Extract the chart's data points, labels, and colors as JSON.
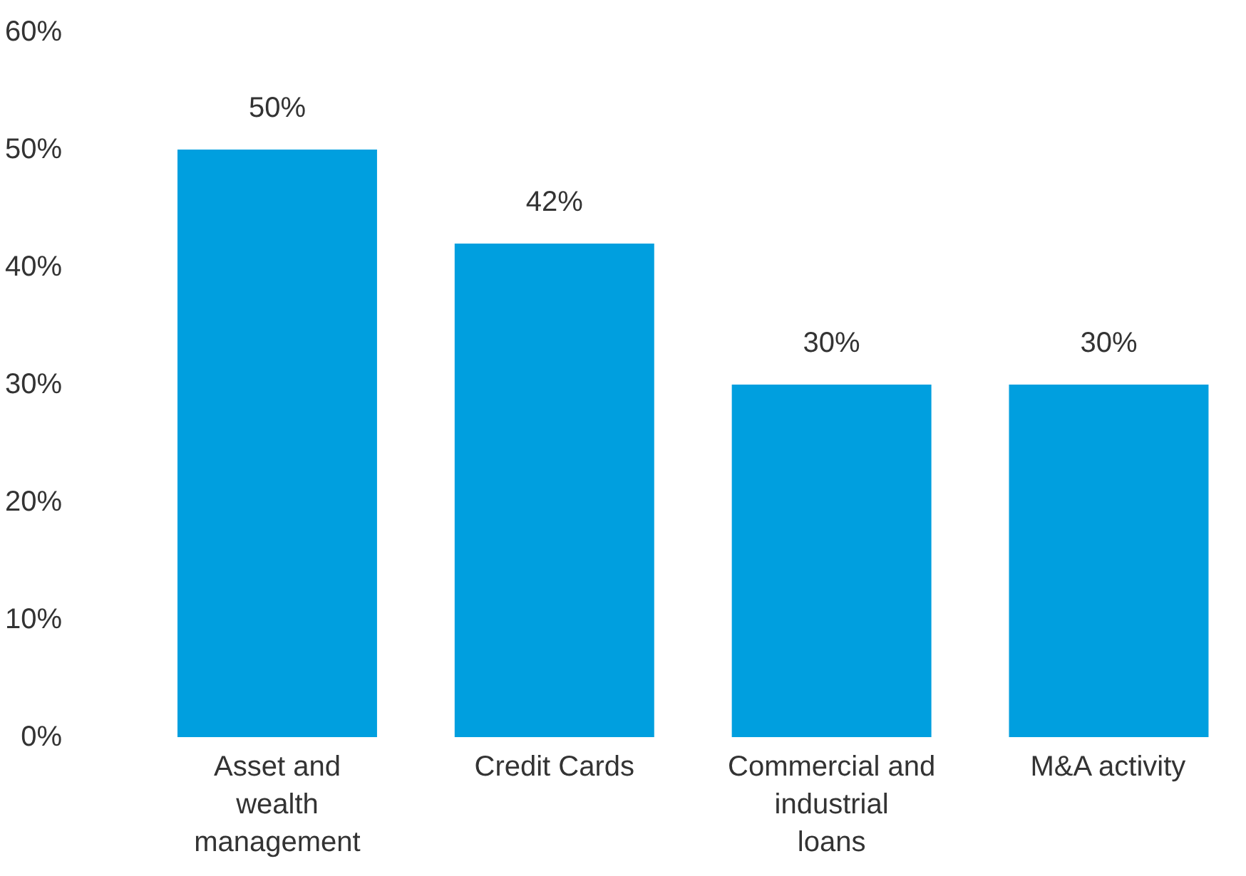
{
  "chart_data": {
    "type": "bar",
    "categories": [
      "Asset and wealth management",
      "Credit Cards",
      "Commercial and industrial loans",
      "M&A activity"
    ],
    "values": [
      50,
      42,
      30,
      30
    ],
    "color": "#009fdf",
    "data_labels": true,
    "value_labels": [
      "50%",
      "42%",
      "30%",
      "30%"
    ],
    "ylim": [
      0,
      60
    ],
    "yticks": [
      {
        "value": 0,
        "label": "0%"
      },
      {
        "value": 10,
        "label": "10%"
      },
      {
        "value": 20,
        "label": "20%"
      },
      {
        "value": 30,
        "label": "30%"
      },
      {
        "value": 40,
        "label": "40%"
      },
      {
        "value": 50,
        "label": "50%"
      },
      {
        "value": 60,
        "label": "60%"
      }
    ],
    "grid": false
  }
}
